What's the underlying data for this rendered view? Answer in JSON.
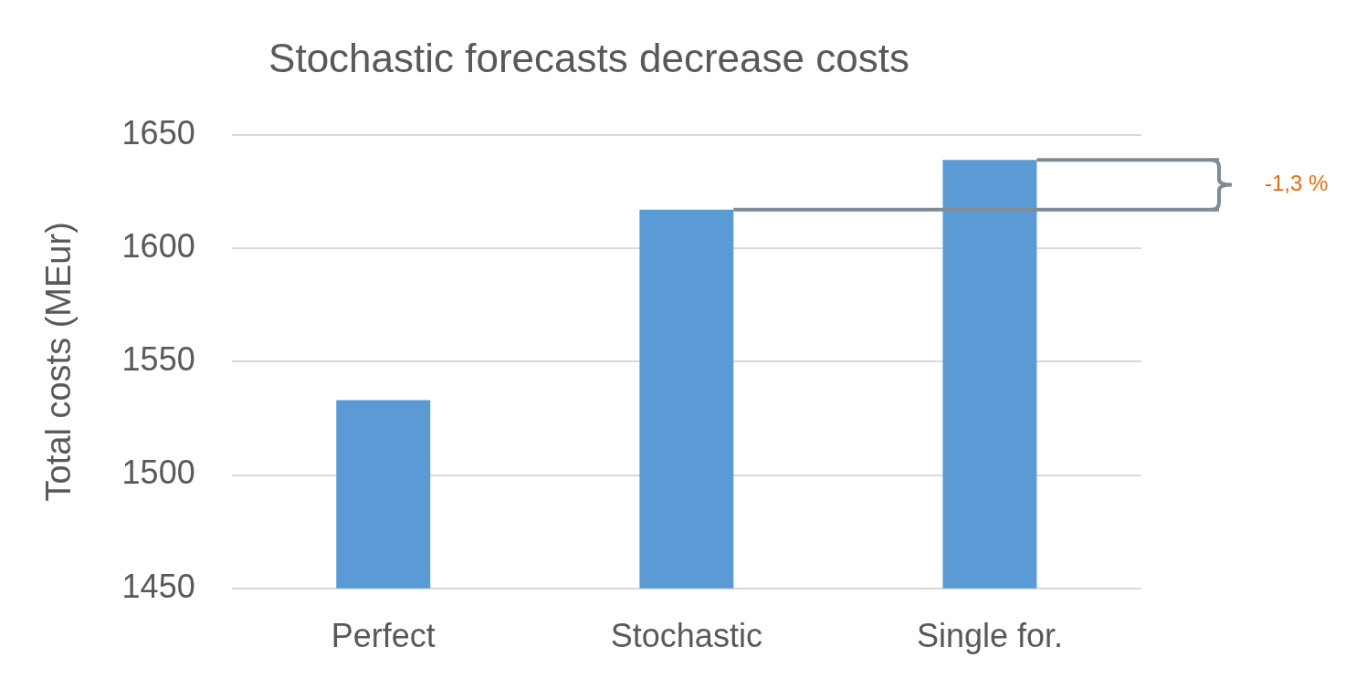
{
  "chart_data": {
    "type": "bar",
    "title": "Stochastic forecasts decrease costs",
    "ylabel": "Total costs (MEur)",
    "categories": [
      "Perfect",
      "Stochastic",
      "Single for."
    ],
    "values": [
      1533,
      1617,
      1639
    ],
    "color": "#5b9bd5",
    "ylim": [
      1450,
      1650
    ],
    "yticks": [
      1450,
      1500,
      1550,
      1600,
      1650
    ],
    "grid": "y",
    "ref_lines": [
      {
        "axis": "y",
        "value": 1617,
        "color": "#7f8c95"
      },
      {
        "axis": "y",
        "value": 1639,
        "color": "#7f8c95"
      }
    ],
    "annotations": [
      "-1,3 %"
    ]
  }
}
